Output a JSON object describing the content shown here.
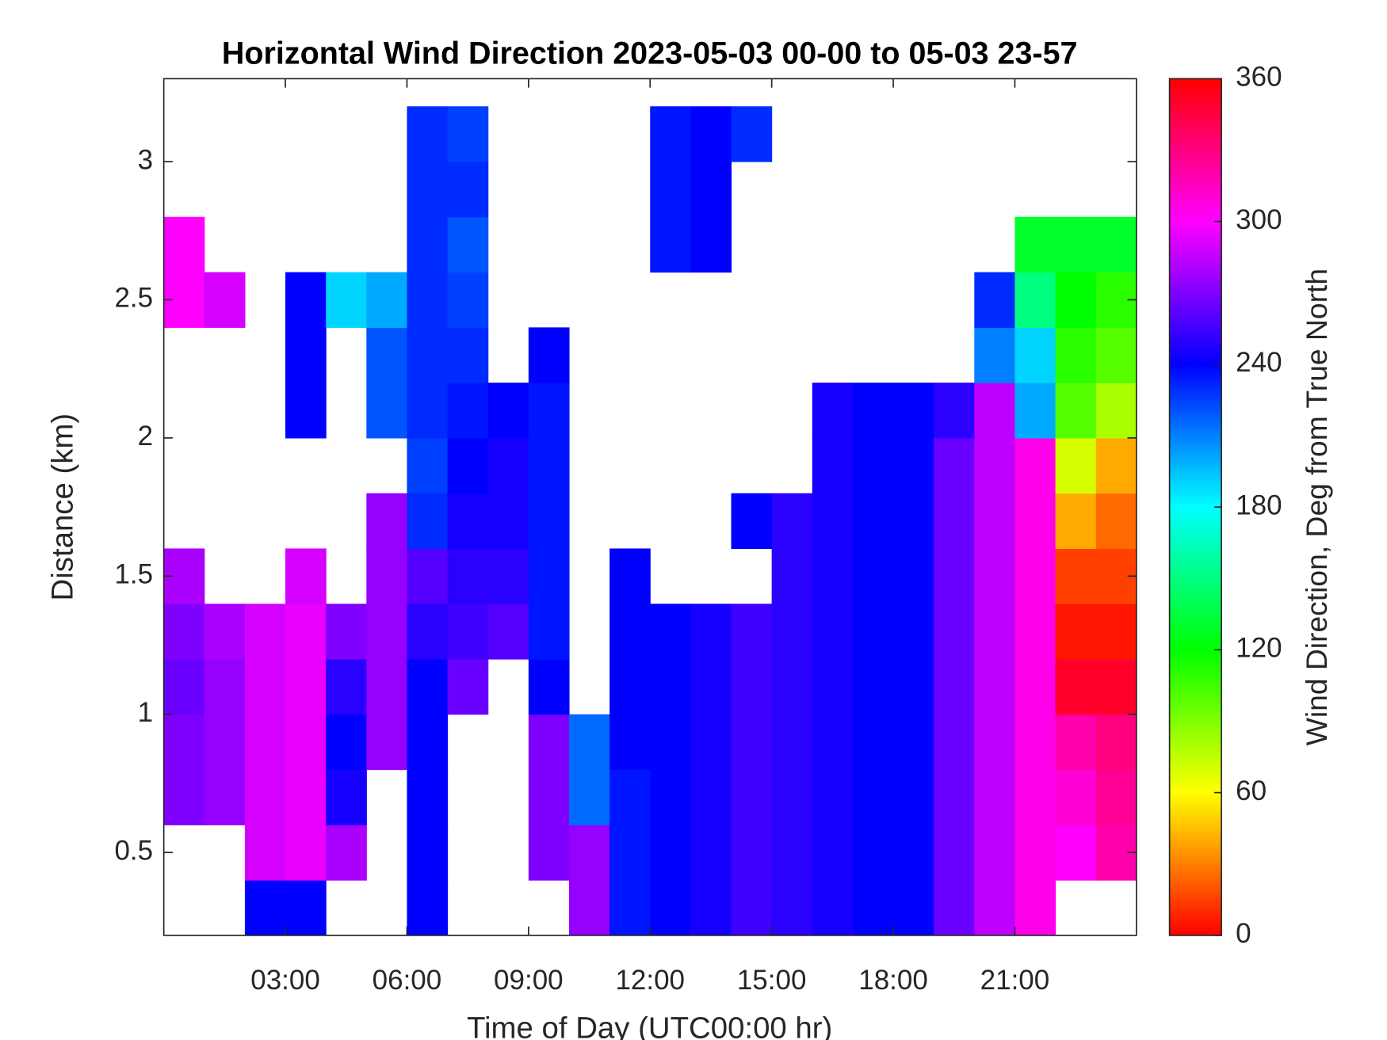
{
  "chart_data": {
    "type": "heatmap",
    "title": "Horizontal Wind Direction 2023-05-03 00-00 to 05-03 23-57",
    "x_label": "Time of Day (UTC00:00 hr)",
    "y_label": "Distance (km)",
    "colorbar_label": "Wind Direction, Deg from True North",
    "colormap": "hsv",
    "xlim": [
      0,
      24
    ],
    "ylim": [
      0.2,
      3.3
    ],
    "clim": [
      0,
      360
    ],
    "xticks": [
      {
        "value": 3,
        "label": "03:00"
      },
      {
        "value": 6,
        "label": "06:00"
      },
      {
        "value": 9,
        "label": "09:00"
      },
      {
        "value": 12,
        "label": "12:00"
      },
      {
        "value": 15,
        "label": "15:00"
      },
      {
        "value": 18,
        "label": "18:00"
      },
      {
        "value": 21,
        "label": "21:00"
      }
    ],
    "yticks": [
      0.5,
      1,
      1.5,
      2,
      2.5,
      3
    ],
    "cticks": [
      0,
      60,
      120,
      180,
      240,
      300,
      360
    ],
    "xbins": [
      0,
      1,
      2,
      3,
      4,
      5,
      6,
      7,
      8,
      9,
      10,
      11,
      12,
      13,
      14,
      15,
      16,
      17,
      18,
      19,
      20,
      21,
      22,
      23,
      24
    ],
    "ybins": [
      0.2,
      0.4,
      0.6,
      0.8,
      1.0,
      1.2,
      1.4,
      1.6,
      1.8,
      2.0,
      2.2,
      2.4,
      2.6,
      2.8,
      3.0,
      3.2
    ],
    "values": [
      [
        null,
        null,
        240,
        240,
        null,
        null,
        240,
        null,
        null,
        null,
        275,
        235,
        240,
        245,
        255,
        250,
        245,
        240,
        240,
        265,
        285,
        305,
        null,
        null
      ],
      [
        null,
        null,
        290,
        295,
        280,
        null,
        240,
        null,
        null,
        270,
        275,
        235,
        240,
        245,
        255,
        250,
        245,
        240,
        240,
        265,
        285,
        305,
        300,
        320
      ],
      [
        270,
        275,
        290,
        295,
        245,
        null,
        240,
        null,
        null,
        270,
        215,
        235,
        240,
        245,
        255,
        250,
        245,
        240,
        240,
        265,
        285,
        305,
        310,
        325
      ],
      [
        270,
        275,
        290,
        295,
        240,
        275,
        240,
        null,
        null,
        270,
        215,
        240,
        240,
        245,
        255,
        250,
        245,
        240,
        240,
        265,
        285,
        305,
        320,
        330
      ],
      [
        265,
        275,
        290,
        295,
        250,
        275,
        240,
        265,
        null,
        240,
        null,
        240,
        240,
        245,
        255,
        250,
        245,
        240,
        240,
        265,
        285,
        305,
        350,
        350
      ],
      [
        270,
        280,
        290,
        295,
        270,
        275,
        250,
        255,
        260,
        235,
        null,
        240,
        240,
        245,
        255,
        250,
        245,
        240,
        240,
        265,
        285,
        305,
        5,
        5
      ],
      [
        280,
        null,
        null,
        290,
        null,
        275,
        260,
        250,
        250,
        235,
        null,
        240,
        null,
        null,
        null,
        250,
        245,
        240,
        240,
        265,
        285,
        305,
        15,
        15
      ],
      [
        null,
        null,
        null,
        null,
        null,
        275,
        230,
        245,
        245,
        235,
        null,
        null,
        null,
        null,
        240,
        250,
        245,
        240,
        240,
        265,
        285,
        305,
        40,
        25
      ],
      [
        null,
        null,
        null,
        null,
        null,
        null,
        225,
        240,
        245,
        235,
        null,
        null,
        null,
        null,
        null,
        null,
        245,
        240,
        240,
        265,
        285,
        305,
        70,
        40
      ],
      [
        null,
        null,
        null,
        240,
        null,
        220,
        230,
        235,
        240,
        235,
        null,
        null,
        null,
        null,
        null,
        null,
        245,
        240,
        240,
        250,
        285,
        200,
        100,
        80
      ],
      [
        null,
        null,
        null,
        240,
        null,
        220,
        230,
        230,
        null,
        240,
        null,
        null,
        null,
        null,
        null,
        null,
        null,
        null,
        null,
        null,
        210,
        190,
        110,
        100
      ],
      [
        300,
        290,
        null,
        240,
        190,
        200,
        230,
        225,
        null,
        null,
        null,
        null,
        null,
        null,
        null,
        null,
        null,
        null,
        null,
        null,
        230,
        150,
        120,
        110
      ],
      [
        300,
        null,
        null,
        null,
        null,
        null,
        230,
        220,
        null,
        null,
        null,
        null,
        235,
        240,
        null,
        null,
        null,
        null,
        null,
        null,
        null,
        130,
        130,
        130
      ],
      [
        null,
        null,
        null,
        null,
        null,
        null,
        230,
        230,
        null,
        null,
        null,
        null,
        235,
        240,
        null,
        null,
        null,
        null,
        null,
        null,
        null,
        null,
        null,
        null
      ],
      [
        null,
        null,
        null,
        null,
        null,
        null,
        230,
        225,
        null,
        null,
        null,
        null,
        235,
        240,
        230,
        null,
        null,
        null,
        null,
        null,
        null,
        null,
        null,
        null
      ]
    ]
  }
}
